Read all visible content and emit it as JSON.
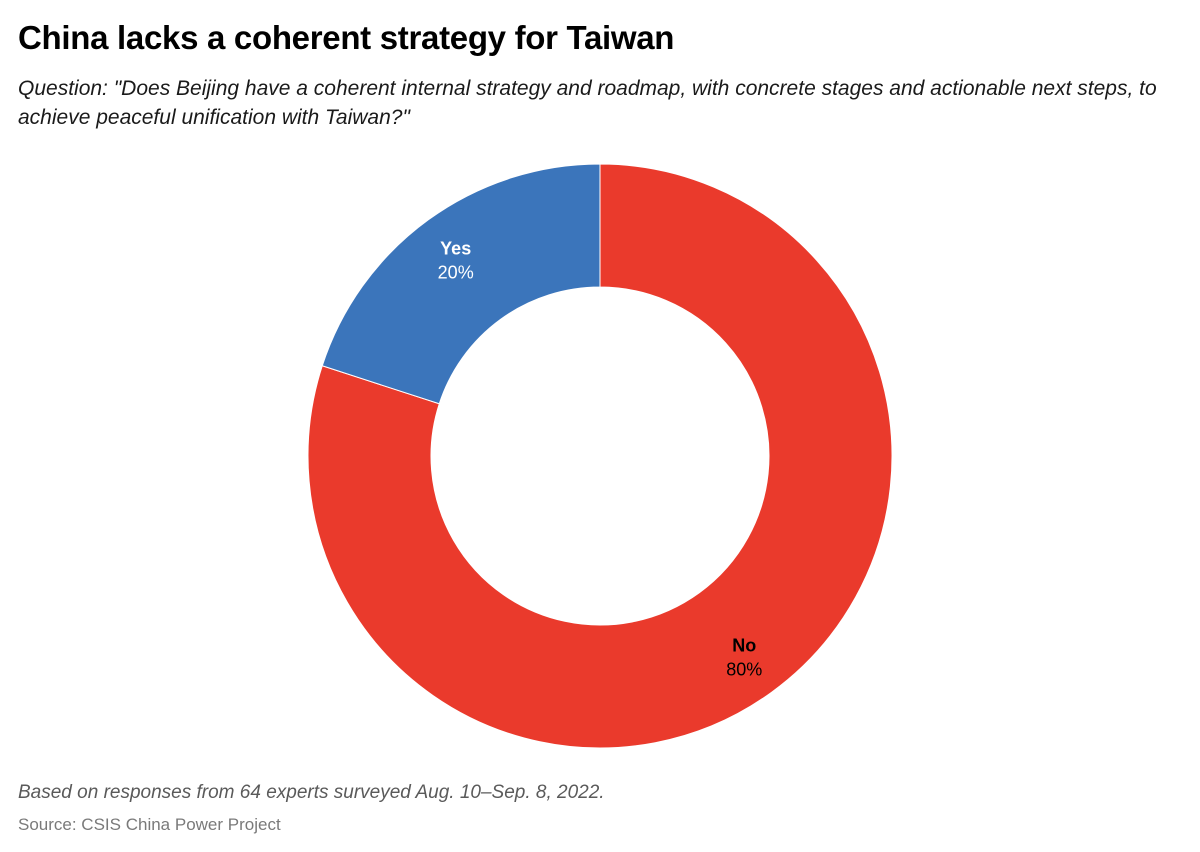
{
  "header": {
    "title": "China lacks a coherent strategy for Taiwan",
    "subtitle": "Question: \"Does Beijing have a coherent internal strategy and roadmap, with concrete stages and actionable next steps, to achieve peaceful unification with Taiwan?\""
  },
  "footer": {
    "note": "Based on responses from 64 experts surveyed Aug. 10–Sep. 8, 2022.",
    "source": "Source: CSIS China Power Project"
  },
  "chart_data": {
    "type": "pie",
    "donut": true,
    "start": "top, clockwise",
    "categories": [
      "No",
      "Yes"
    ],
    "values": [
      80,
      20
    ],
    "labels": [
      "80%",
      "20%"
    ],
    "colors": [
      "#ea3a2c",
      "#3b75bb"
    ],
    "label_colors": [
      "#000000",
      "#ffffff"
    ],
    "legend": "none (labels on slices)"
  }
}
